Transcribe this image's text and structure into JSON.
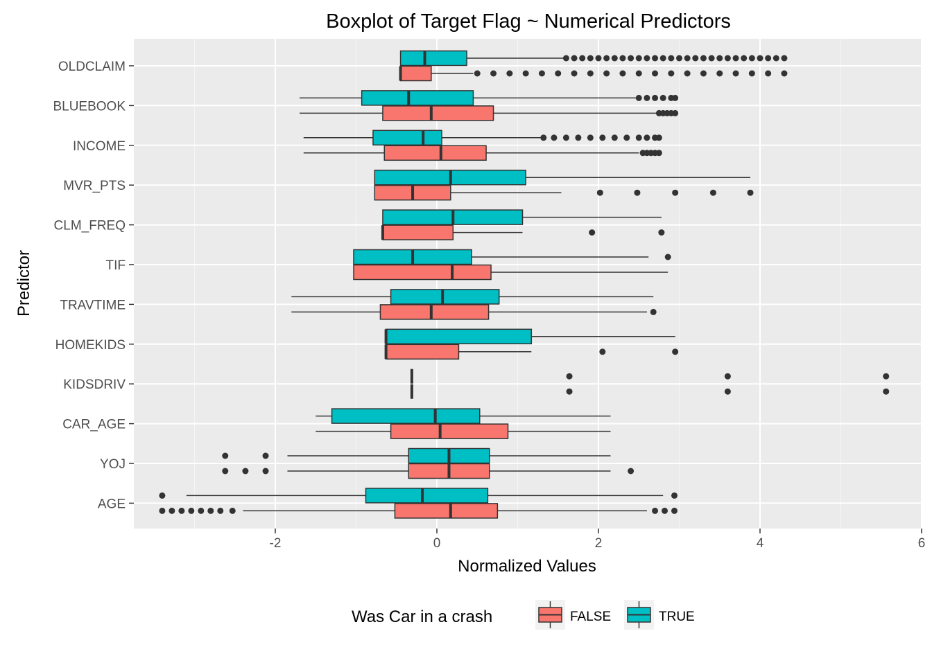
{
  "chart_data": {
    "type": "boxplot",
    "orientation": "horizontal",
    "title": "Boxplot of Target Flag ~ Numerical Predictors",
    "xlabel": "Normalized Values",
    "ylabel": "Predictor",
    "xlim": [
      -3.7,
      6.0
    ],
    "x_ticks": [
      -2,
      0,
      2,
      4,
      6
    ],
    "x_tick_labels": [
      "-2",
      "0",
      "2",
      "4",
      "6"
    ],
    "grid": true,
    "legend": {
      "title": "Was Car in a crash",
      "position": "bottom",
      "entries": [
        {
          "label": "FALSE",
          "color": "#F8766D"
        },
        {
          "label": "TRUE",
          "color": "#00BFC4"
        }
      ]
    },
    "categories": [
      "OLDCLAIM",
      "BLUEBOOK",
      "INCOME",
      "MVR_PTS",
      "CLM_FREQ",
      "TIF",
      "TRAVTIME",
      "HOMEKIDS",
      "KIDSDRIV",
      "CAR_AGE",
      "YOJ",
      "AGE"
    ],
    "series": [
      {
        "name": "FALSE",
        "color": "#F8766D",
        "boxes": [
          {
            "category": "OLDCLAIM",
            "whisker_low": -0.45,
            "q1": -0.45,
            "median": -0.45,
            "q3": -0.07,
            "whisker_high": 0.45,
            "outliers": [
              0.5,
              0.7,
              0.9,
              1.1,
              1.3,
              1.5,
              1.7,
              1.9,
              2.1,
              2.3,
              2.5,
              2.7,
              2.9,
              3.1,
              3.3,
              3.5,
              3.7,
              3.9,
              4.1,
              4.3
            ]
          },
          {
            "category": "BLUEBOOK",
            "whisker_low": -1.7,
            "q1": -0.67,
            "median": -0.07,
            "q3": 0.7,
            "whisker_high": 2.72,
            "outliers": [
              2.75,
              2.8,
              2.85,
              2.9,
              2.95
            ]
          },
          {
            "category": "INCOME",
            "whisker_low": -1.65,
            "q1": -0.65,
            "median": 0.05,
            "q3": 0.61,
            "whisker_high": 2.5,
            "outliers": [
              2.55,
              2.6,
              2.65,
              2.7,
              2.75
            ]
          },
          {
            "category": "MVR_PTS",
            "whisker_low": -0.77,
            "q1": -0.77,
            "median": -0.3,
            "q3": 0.17,
            "whisker_high": 1.54,
            "outliers": [
              2.02,
              2.48,
              2.95,
              3.42,
              3.88
            ]
          },
          {
            "category": "CLM_FREQ",
            "whisker_low": -0.67,
            "q1": -0.67,
            "median": -0.67,
            "q3": 0.2,
            "whisker_high": 1.06,
            "outliers": [
              1.92,
              2.78
            ]
          },
          {
            "category": "TIF",
            "whisker_low": -1.03,
            "q1": -1.03,
            "median": 0.19,
            "q3": 0.67,
            "whisker_high": 2.86,
            "outliers": []
          },
          {
            "category": "TRAVTIME",
            "whisker_low": -1.8,
            "q1": -0.7,
            "median": -0.07,
            "q3": 0.64,
            "whisker_high": 2.6,
            "outliers": [
              2.68
            ]
          },
          {
            "category": "HOMEKIDS",
            "whisker_low": -0.63,
            "q1": -0.63,
            "median": -0.63,
            "q3": 0.27,
            "whisker_high": 1.17,
            "outliers": [
              2.05,
              2.95
            ]
          },
          {
            "category": "KIDSDRIV",
            "whisker_low": -0.31,
            "q1": -0.31,
            "median": -0.31,
            "q3": -0.31,
            "whisker_high": -0.31,
            "outliers": [
              1.64,
              3.6,
              5.56
            ]
          },
          {
            "category": "CAR_AGE",
            "whisker_low": -1.5,
            "q1": -0.57,
            "median": 0.04,
            "q3": 0.88,
            "whisker_high": 2.15,
            "outliers": []
          },
          {
            "category": "YOJ",
            "whisker_low": -1.85,
            "q1": -0.35,
            "median": 0.15,
            "q3": 0.65,
            "whisker_high": 2.15,
            "outliers": [
              -2.62,
              -2.37,
              -2.12,
              2.4
            ]
          },
          {
            "category": "AGE",
            "whisker_low": -2.4,
            "q1": -0.52,
            "median": 0.17,
            "q3": 0.75,
            "whisker_high": 2.6,
            "outliers": [
              -3.4,
              -3.28,
              -3.16,
              -3.04,
              -2.92,
              -2.8,
              -2.68,
              -2.53,
              2.7,
              2.82,
              2.94
            ]
          }
        ]
      },
      {
        "name": "TRUE",
        "color": "#00BFC4",
        "boxes": [
          {
            "category": "OLDCLAIM",
            "whisker_low": -0.45,
            "q1": -0.45,
            "median": -0.15,
            "q3": 0.37,
            "whisker_high": 1.58,
            "outliers": [
              1.6,
              1.7,
              1.8,
              1.9,
              2.0,
              2.1,
              2.2,
              2.3,
              2.4,
              2.5,
              2.6,
              2.7,
              2.8,
              2.9,
              3.0,
              3.1,
              3.2,
              3.3,
              3.4,
              3.5,
              3.6,
              3.7,
              3.8,
              3.9,
              4.0,
              4.1,
              4.2,
              4.3
            ]
          },
          {
            "category": "BLUEBOOK",
            "whisker_low": -1.7,
            "q1": -0.93,
            "median": -0.35,
            "q3": 0.45,
            "whisker_high": 2.48,
            "outliers": [
              2.5,
              2.6,
              2.7,
              2.8,
              2.9,
              2.95
            ]
          },
          {
            "category": "INCOME",
            "whisker_low": -1.65,
            "q1": -0.79,
            "median": -0.17,
            "q3": 0.06,
            "whisker_high": 1.3,
            "outliers": [
              1.32,
              1.45,
              1.6,
              1.75,
              1.9,
              2.05,
              2.2,
              2.35,
              2.5,
              2.6,
              2.7,
              2.75
            ]
          },
          {
            "category": "MVR_PTS",
            "whisker_low": -0.77,
            "q1": -0.77,
            "median": 0.17,
            "q3": 1.1,
            "whisker_high": 3.88,
            "outliers": []
          },
          {
            "category": "CLM_FREQ",
            "whisker_low": -0.67,
            "q1": -0.67,
            "median": 0.2,
            "q3": 1.06,
            "whisker_high": 2.78,
            "outliers": []
          },
          {
            "category": "TIF",
            "whisker_low": -1.03,
            "q1": -1.03,
            "median": -0.3,
            "q3": 0.43,
            "whisker_high": 2.62,
            "outliers": [
              2.86
            ]
          },
          {
            "category": "TRAVTIME",
            "whisker_low": -1.8,
            "q1": -0.57,
            "median": 0.07,
            "q3": 0.77,
            "whisker_high": 2.68,
            "outliers": []
          },
          {
            "category": "HOMEKIDS",
            "whisker_low": -0.63,
            "q1": -0.63,
            "median": -0.63,
            "q3": 1.17,
            "whisker_high": 2.95,
            "outliers": []
          },
          {
            "category": "KIDSDRIV",
            "whisker_low": -0.31,
            "q1": -0.31,
            "median": -0.31,
            "q3": -0.31,
            "whisker_high": -0.31,
            "outliers": [
              1.64,
              3.6,
              5.56
            ]
          },
          {
            "category": "CAR_AGE",
            "whisker_low": -1.5,
            "q1": -1.3,
            "median": -0.02,
            "q3": 0.53,
            "whisker_high": 2.15,
            "outliers": []
          },
          {
            "category": "YOJ",
            "whisker_low": -1.85,
            "q1": -0.35,
            "median": 0.15,
            "q3": 0.65,
            "whisker_high": 2.15,
            "outliers": [
              -2.62,
              -2.12
            ]
          },
          {
            "category": "AGE",
            "whisker_low": -3.1,
            "q1": -0.88,
            "median": -0.18,
            "q3": 0.63,
            "whisker_high": 2.8,
            "outliers": [
              -3.4,
              2.94
            ]
          }
        ]
      }
    ]
  }
}
